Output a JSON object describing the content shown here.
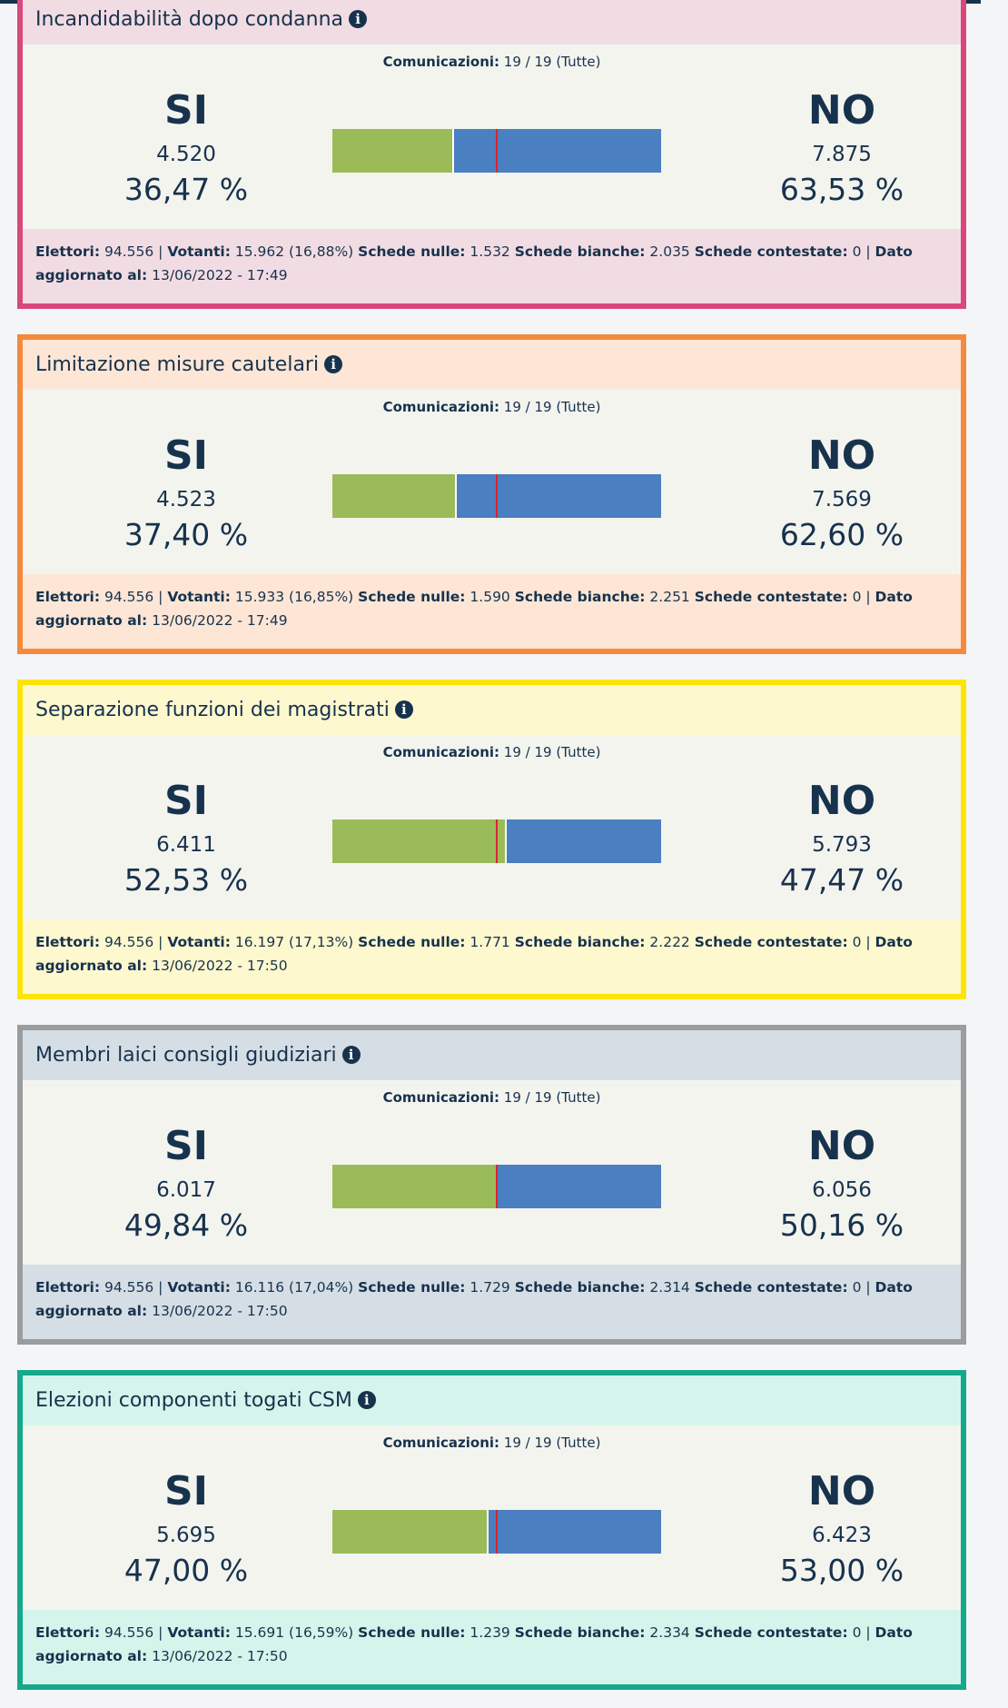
{
  "yes_label": "SI",
  "no_label": "NO",
  "cards": [
    {
      "title": "Incandidabilità dopo condanna",
      "comunicazioni": {
        "label": "Comunicazioni:",
        "value": "19 / 19 (Tutte)"
      },
      "yes": {
        "votes": "4.520",
        "percent": {
          "value": 36.47,
          "label": "36,47 %"
        }
      },
      "no": {
        "votes": "7.875",
        "percent": {
          "value": 63.53,
          "label": "63,53 %"
        }
      },
      "footer": [
        {
          "label": "Elettori:",
          "value": "94.556 |"
        },
        {
          "label": "Votanti:",
          "value": "15.962 (16,88%)"
        },
        {
          "label": "Schede nulle:",
          "value": "1.532"
        },
        {
          "label": "Schede bianche:",
          "value": "2.035"
        },
        {
          "label": "Schede contestate:",
          "value": "0 |"
        },
        {
          "label": "Dato aggiornato al:",
          "value": "13/06/2022 - 17:49"
        }
      ]
    },
    {
      "title": "Limitazione misure cautelari",
      "comunicazioni": {
        "label": "Comunicazioni:",
        "value": "19 / 19 (Tutte)"
      },
      "yes": {
        "votes": "4.523",
        "percent": {
          "value": 37.4,
          "label": "37,40 %"
        }
      },
      "no": {
        "votes": "7.569",
        "percent": {
          "value": 62.6,
          "label": "62,60 %"
        }
      },
      "footer": [
        {
          "label": "Elettori:",
          "value": "94.556 |"
        },
        {
          "label": "Votanti:",
          "value": "15.933 (16,85%)"
        },
        {
          "label": "Schede nulle:",
          "value": "1.590"
        },
        {
          "label": "Schede bianche:",
          "value": "2.251"
        },
        {
          "label": "Schede contestate:",
          "value": "0 |"
        },
        {
          "label": "Dato aggiornato al:",
          "value": "13/06/2022 - 17:49"
        }
      ]
    },
    {
      "title": "Separazione funzioni dei magistrati",
      "comunicazioni": {
        "label": "Comunicazioni:",
        "value": "19 / 19 (Tutte)"
      },
      "yes": {
        "votes": "6.411",
        "percent": {
          "value": 52.53,
          "label": "52,53 %"
        }
      },
      "no": {
        "votes": "5.793",
        "percent": {
          "value": 47.47,
          "label": "47,47 %"
        }
      },
      "footer": [
        {
          "label": "Elettori:",
          "value": "94.556 |"
        },
        {
          "label": "Votanti:",
          "value": "16.197 (17,13%)"
        },
        {
          "label": "Schede nulle:",
          "value": "1.771"
        },
        {
          "label": "Schede bianche:",
          "value": "2.222"
        },
        {
          "label": "Schede contestate:",
          "value": "0 |"
        },
        {
          "label": "Dato aggiornato al:",
          "value": "13/06/2022 - 17:50"
        }
      ]
    },
    {
      "title": "Membri laici consigli giudiziari",
      "comunicazioni": {
        "label": "Comunicazioni:",
        "value": "19 / 19 (Tutte)"
      },
      "yes": {
        "votes": "6.017",
        "percent": {
          "value": 49.84,
          "label": "49,84 %"
        }
      },
      "no": {
        "votes": "6.056",
        "percent": {
          "value": 50.16,
          "label": "50,16 %"
        }
      },
      "footer": [
        {
          "label": "Elettori:",
          "value": "94.556 |"
        },
        {
          "label": "Votanti:",
          "value": "16.116 (17,04%)"
        },
        {
          "label": "Schede nulle:",
          "value": "1.729"
        },
        {
          "label": "Schede bianche:",
          "value": "2.314"
        },
        {
          "label": "Schede contestate:",
          "value": "0 |"
        },
        {
          "label": "Dato aggiornato al:",
          "value": "13/06/2022 - 17:50"
        }
      ]
    },
    {
      "title": "Elezioni componenti togati CSM",
      "comunicazioni": {
        "label": "Comunicazioni:",
        "value": "19 / 19 (Tutte)"
      },
      "yes": {
        "votes": "5.695",
        "percent": {
          "value": 47.0,
          "label": "47,00 %"
        }
      },
      "no": {
        "votes": "6.423",
        "percent": {
          "value": 53.0,
          "label": "53,00 %"
        }
      },
      "footer": [
        {
          "label": "Elettori:",
          "value": "94.556 |"
        },
        {
          "label": "Votanti:",
          "value": "15.691 (16,59%)"
        },
        {
          "label": "Schede nulle:",
          "value": "1.239"
        },
        {
          "label": "Schede bianche:",
          "value": "2.334"
        },
        {
          "label": "Schede contestate:",
          "value": "0 |"
        },
        {
          "label": "Dato aggiornato al:",
          "value": "13/06/2022 - 17:50"
        }
      ]
    }
  ]
}
